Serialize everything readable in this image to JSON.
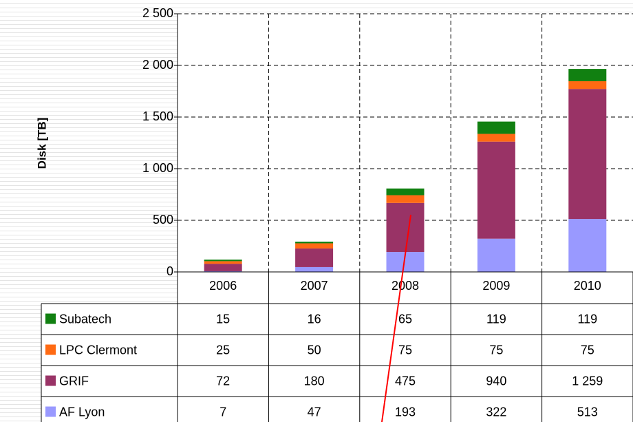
{
  "chart_data": {
    "type": "bar",
    "stacked": true,
    "ylabel": "Disk  [TB]",
    "categories": [
      "2006",
      "2007",
      "2008",
      "2009",
      "2010"
    ],
    "series": [
      {
        "name": "Subatech",
        "color": "#118011",
        "values": [
          15,
          16,
          65,
          119,
          119
        ]
      },
      {
        "name": "LPC Clermont",
        "color": "#ff6a13",
        "values": [
          25,
          50,
          75,
          75,
          75
        ]
      },
      {
        "name": "GRIF",
        "color": "#993366",
        "values": [
          72,
          180,
          475,
          940,
          1259
        ],
        "value_labels": [
          "72",
          "180",
          "475",
          "940",
          "1 259"
        ]
      },
      {
        "name": "AF Lyon",
        "color": "#9999ff",
        "values": [
          7,
          47,
          193,
          322,
          513
        ]
      }
    ],
    "ylim": [
      0,
      2500
    ],
    "yticks": [
      0,
      500,
      {
        "value": 1000,
        "label": "1 000"
      },
      {
        "value": 1500,
        "label": "1 500"
      },
      {
        "value": 2000,
        "label": "2 000"
      },
      {
        "value": 2500,
        "label": "2 500"
      }
    ],
    "grid": true
  }
}
